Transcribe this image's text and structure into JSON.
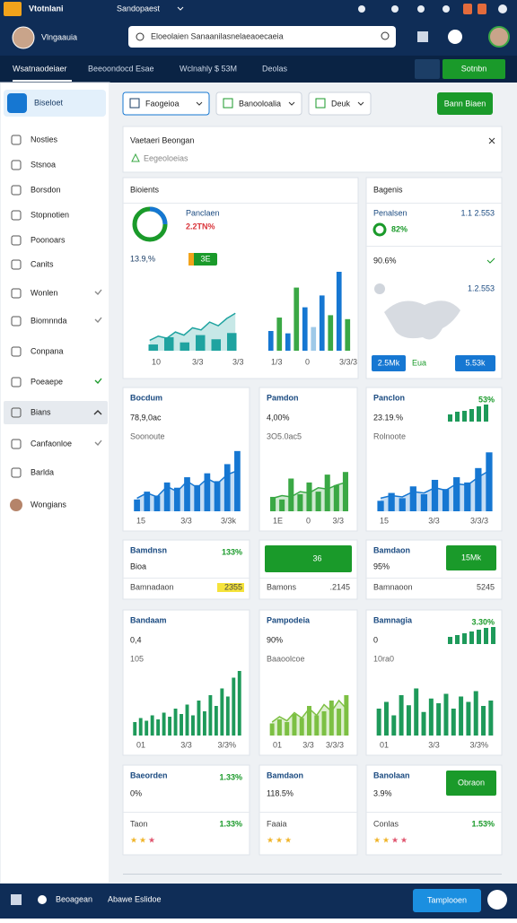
{
  "header": {
    "logo": "Vtotnlani",
    "workspace": "Sandopaest",
    "user": "Vlngaauia",
    "search": "Eloeolaien Sanaanilasnelaeaoecaeia"
  },
  "nav": {
    "tabs": [
      "Wsatnaodeiaer",
      "Beeoondocd Esae",
      "Wclnahly $ 53M",
      "Deolas"
    ],
    "button": "Sotnbn"
  },
  "sidebar": {
    "active": "Biseloet",
    "items": [
      "Nosties",
      "Stsnoa",
      "Borsdon",
      "Stopnotien",
      "Poonoars",
      "Canits",
      "Wonlen",
      "Biomnnda",
      "Conpana",
      "Poeaepe",
      "Bians",
      "Canfaonloe",
      "Barlda",
      "Wongians"
    ]
  },
  "toolbar": {
    "filters": [
      "Faogeioa",
      "Banooloalia",
      "Deuk"
    ],
    "button": "Bann Biaen"
  },
  "banner": {
    "title": "Vaetaeri Beongan",
    "sub": "Eegeoloeias"
  },
  "cards": [
    {
      "title": "Bioients",
      "label": "Panclaen",
      "tag": "2.2TN%",
      "value": "13.9,%",
      "badge": "3E",
      "ylim": [
        0,
        100
      ],
      "line": [
        20,
        28,
        24,
        36,
        30,
        44,
        40,
        55,
        48,
        62,
        72
      ],
      "bars": [
        12,
        26,
        16,
        30,
        22,
        34
      ],
      "bars2": [
        25,
        42,
        22,
        80,
        55,
        30,
        70,
        45,
        100,
        40
      ],
      "xlabels": [
        "10",
        "3/3",
        "3/3"
      ],
      "xlabels2": [
        "1/3",
        "0",
        "3/3/3"
      ]
    },
    {
      "title": "Bagenis",
      "label": "Penalsen",
      "tag": "1.1 2.553",
      "value": "82%",
      "sub": "90.6%",
      "sub2": "1.2.553",
      "buttons": [
        "2.5Mk",
        "Eua",
        "5.53k"
      ]
    },
    {
      "title": "Bocdum",
      "value": "78,9,0ac",
      "sub": "Soonoute",
      "ylim": [
        0,
        100
      ],
      "line": [
        20,
        28,
        22,
        38,
        30,
        46,
        36,
        50,
        42,
        56,
        62
      ],
      "bars": [
        18,
        30,
        24,
        44,
        36,
        52,
        40,
        58,
        46,
        72,
        92
      ],
      "color": "#1677d2",
      "xlabels": [
        "15",
        "3/3",
        "3/3k"
      ]
    },
    {
      "title": "Pamdon",
      "value": "4,00%",
      "sub": "3O5.0ac5",
      "ylim": [
        0,
        100
      ],
      "line": [
        20,
        24,
        22,
        30,
        28,
        36,
        34,
        40,
        44
      ],
      "bars": [
        22,
        18,
        50,
        26,
        44,
        30,
        56,
        40,
        60
      ],
      "color": "#3aa845",
      "xlabels": [
        "1E",
        "0",
        "3/3"
      ]
    },
    {
      "title": "Panclon",
      "value": "23.19.%",
      "sub": "Rolnoote",
      "tag": "53%",
      "ylim": [
        0,
        100
      ],
      "line": [
        20,
        24,
        22,
        30,
        28,
        36,
        32,
        42,
        40,
        52,
        62
      ],
      "bars": [
        16,
        28,
        20,
        38,
        26,
        48,
        34,
        52,
        44,
        66,
        90
      ],
      "color": "#1677d2",
      "mini": [
        40,
        55,
        60,
        70,
        85,
        95
      ],
      "xlabels": [
        "15",
        "3/3",
        "3/3/3"
      ]
    },
    {
      "title": "Bamdnsn",
      "tag": "133%",
      "value": "Bioa",
      "foot": "Bamnadaon",
      "footval": "2355"
    },
    {
      "button": "36",
      "foot": "Bamons",
      "footval": ".2145"
    },
    {
      "title": "Bamdaon",
      "button": "15Mk",
      "value": "95%",
      "foot": "Bamnaoon",
      "footval": "5245"
    },
    {
      "title": "Bandaam",
      "value": "0,4",
      "sub": "105",
      "ylim": [
        0,
        100
      ],
      "bars": [
        20,
        26,
        22,
        30,
        24,
        34,
        28,
        40,
        32,
        46,
        30,
        52,
        36,
        60,
        44,
        70,
        58,
        86,
        96
      ],
      "color": "#1e9a5a",
      "xlabels": [
        "01",
        "3/3",
        "3/3%"
      ]
    },
    {
      "title": "Pampodeia",
      "value": "90%",
      "sub": "Baaoolcoe",
      "ylim": [
        0,
        100
      ],
      "line": [
        20,
        28,
        22,
        34,
        26,
        40,
        30,
        46,
        36,
        52,
        40
      ],
      "bars": [
        18,
        24,
        20,
        32,
        26,
        44,
        30,
        36,
        52,
        40,
        60
      ],
      "color": "#7dc043",
      "xlabels": [
        "01",
        "3/3",
        "3/3/3"
      ]
    },
    {
      "title": "Bamnagia",
      "value": "0",
      "sub": "10ra0",
      "tag": "3.30%",
      "ylim": [
        0,
        100
      ],
      "bars": [
        40,
        50,
        30,
        60,
        45,
        70,
        35,
        55,
        48,
        62,
        40,
        58,
        50,
        66,
        44,
        52
      ],
      "color": "#1e9a5a",
      "mini": [
        40,
        50,
        60,
        70,
        80,
        90,
        95
      ],
      "xlabels": [
        "01",
        "3/3",
        "3/3%"
      ]
    },
    {
      "title": "Baeorden",
      "value": "0%",
      "tag": "1.33%",
      "foot": "Taon",
      "footval": "1.33%",
      "stars": 3
    },
    {
      "title": "Bamdaon",
      "value": "118.5%",
      "foot": "Faaia",
      "stars": 3
    },
    {
      "title": "Banolaan",
      "button": "Obraon",
      "value": "3.9%",
      "tag": "1.53%",
      "foot": "Conlas",
      "footval": "1.53%",
      "stars": 4
    }
  ],
  "bottom": {
    "left": "Beoagean",
    "mid": "Abawe Eslidoe",
    "button": "Tamplooen"
  }
}
